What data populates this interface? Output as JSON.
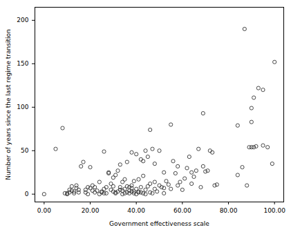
{
  "chart_data": {
    "type": "scatter",
    "xlabel": "Government effectiveness scale",
    "ylabel": "Number of years since the last regime transition",
    "color": "#333333",
    "marker": "open circle",
    "grid": false,
    "xlim": [
      -4,
      104
    ],
    "ylim": [
      -9,
      215
    ],
    "xticks": [
      {
        "value": 0,
        "label": "0.00"
      },
      {
        "value": 20,
        "label": "20.00"
      },
      {
        "value": 40,
        "label": "40.00"
      },
      {
        "value": 60,
        "label": "60.00"
      },
      {
        "value": 80,
        "label": "80.00"
      },
      {
        "value": 100,
        "label": "100.00"
      }
    ],
    "yticks": [
      0,
      50,
      100,
      150,
      200
    ],
    "x": [
      10,
      11,
      12,
      13,
      14,
      15,
      16,
      17,
      18,
      19,
      20,
      21,
      22,
      23,
      24,
      25,
      26,
      26,
      27,
      28,
      28,
      29,
      30,
      31,
      31,
      32,
      33,
      33,
      34,
      35,
      35,
      36,
      36,
      37,
      37,
      38,
      38,
      38,
      39,
      39,
      40,
      40,
      41,
      41,
      42,
      42,
      43,
      43,
      44,
      44,
      45,
      46,
      46,
      47,
      47,
      48,
      48,
      49,
      50,
      50,
      51,
      52,
      53,
      54,
      55,
      55,
      56,
      57,
      58,
      58,
      59,
      60,
      61,
      62,
      63,
      64,
      64,
      65,
      66,
      67,
      68,
      69,
      69,
      70,
      71,
      72,
      73,
      74,
      75,
      5,
      8,
      0,
      9,
      10,
      11,
      12,
      13,
      14,
      15,
      18,
      19,
      20,
      21,
      22,
      24,
      25,
      26,
      27,
      29,
      30,
      30,
      31,
      32,
      33,
      34,
      34,
      35,
      36,
      37,
      38,
      39,
      40,
      41,
      42,
      43,
      44,
      45,
      46,
      48,
      52,
      52,
      84,
      84,
      86,
      87,
      88,
      89,
      90,
      90,
      91,
      91,
      92,
      93,
      95,
      95,
      97,
      99,
      100,
      90
    ],
    "values": [
      1,
      5,
      9,
      3,
      7,
      2,
      32,
      37,
      5,
      8,
      31,
      10,
      2,
      4,
      14,
      3,
      49,
      6,
      8,
      25,
      24,
      12,
      19,
      2,
      22,
      27,
      34,
      5,
      14,
      1,
      17,
      9,
      37,
      8,
      4,
      3,
      10,
      48,
      1,
      15,
      46,
      6,
      17,
      2,
      40,
      8,
      38,
      21,
      50,
      5,
      43,
      74,
      12,
      1,
      52,
      6,
      35,
      3,
      50,
      10,
      8,
      7,
      15,
      11,
      80,
      6,
      38,
      24,
      32,
      10,
      14,
      5,
      18,
      30,
      43,
      12,
      25,
      20,
      27,
      52,
      8,
      93,
      32,
      26,
      27,
      50,
      48,
      10,
      11,
      52,
      76,
      0,
      1,
      0,
      2,
      4,
      1,
      10,
      5,
      2,
      0,
      7,
      4,
      8,
      0,
      2,
      1,
      1,
      5,
      3,
      9,
      1,
      3,
      8,
      0,
      4,
      6,
      2,
      1,
      7,
      3,
      0,
      3,
      2,
      1,
      0,
      9,
      2,
      14,
      25,
      1,
      22,
      79,
      31,
      190,
      10,
      54,
      83,
      99,
      54,
      111,
      55,
      122,
      120,
      56,
      54,
      35,
      152,
      54
    ]
  }
}
